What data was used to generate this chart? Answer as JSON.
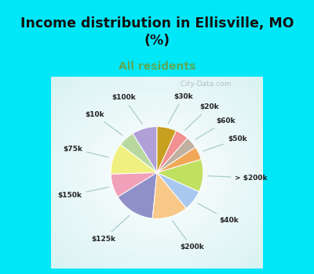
{
  "title": "Income distribution in Ellisville, MO\n(%)",
  "subtitle": "All residents",
  "title_color": "#111111",
  "subtitle_color": "#5aaa5a",
  "bg_cyan": "#00e8f8",
  "labels": [
    "$100k",
    "$10k",
    "$75k",
    "$150k",
    "$125k",
    "$200k",
    "$40k",
    "> $200k",
    "$50k",
    "$60k",
    "$20k",
    "$30k"
  ],
  "values": [
    8.5,
    5.5,
    10.5,
    8.0,
    14.0,
    12.0,
    7.0,
    11.0,
    4.5,
    4.0,
    4.5,
    6.5
  ],
  "colors": [
    "#b0a0d8",
    "#b8d8a0",
    "#f0f080",
    "#f0a0b8",
    "#9090c8",
    "#f8c888",
    "#a8c8f0",
    "#c0e060",
    "#f0a858",
    "#c0b0a0",
    "#f09090",
    "#c8a020"
  ],
  "watermark": "  City-Data.com"
}
